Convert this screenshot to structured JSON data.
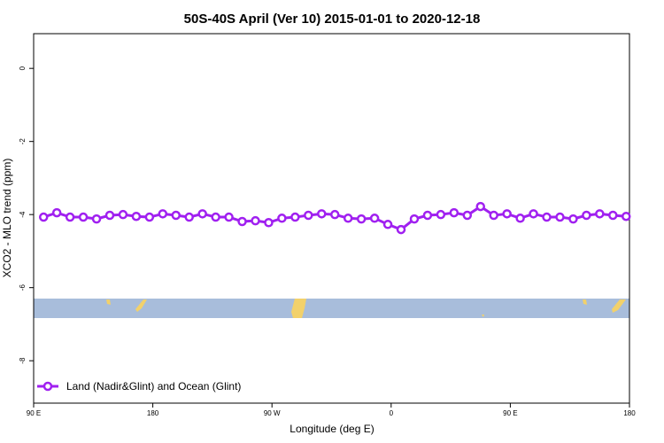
{
  "chart_data": {
    "type": "line",
    "title": "50S-40S April (Ver 10)   2015-01-01 to 2020-12-18",
    "xlabel": "Longitude (deg E)",
    "ylabel": "XCO2 - MLO trend (ppm)",
    "xlim": [
      90,
      540
    ],
    "xticks": [
      {
        "value": 90,
        "label": "90 E"
      },
      180,
      {
        "value": 270,
        "label": "90 W"
      },
      {
        "value": 360,
        "label": "0"
      },
      {
        "value": 450,
        "label": "90 E"
      },
      {
        "value": 540,
        "label": "180"
      }
    ],
    "ylim": [
      -9.16,
      0.95
    ],
    "yticks": [
      0,
      -2,
      -4,
      -6,
      -8
    ],
    "legend": "bottom-left",
    "x": [
      97.5,
      107.5,
      117.5,
      127.5,
      137.5,
      147.5,
      157.5,
      167.5,
      177.5,
      187.5,
      197.5,
      207.5,
      217.5,
      227.5,
      237.5,
      247.5,
      257.5,
      267.5,
      277.5,
      287.5,
      297.5,
      307.5,
      317.5,
      327.5,
      337.5,
      347.5,
      357.5,
      367.5,
      377.5,
      387.5,
      397.5,
      407.5,
      417.5,
      427.5,
      437.5,
      447.5,
      457.5,
      467.5,
      477.5,
      487.5,
      497.5,
      507.5,
      517.5,
      527.5,
      537.5
    ],
    "series": [
      {
        "name": "Land (Nadir&Glint) and Ocean (Glint)",
        "color": "#a020f0",
        "values": [
          -4.07,
          -3.95,
          -4.07,
          -4.07,
          -4.12,
          -4.02,
          -4.0,
          -4.05,
          -4.07,
          -3.98,
          -4.02,
          -4.07,
          -3.98,
          -4.07,
          -4.07,
          -4.19,
          -4.17,
          -4.22,
          -4.1,
          -4.07,
          -4.02,
          -3.98,
          -4.0,
          -4.1,
          -4.12,
          -4.1,
          -4.27,
          -4.41,
          -4.12,
          -4.02,
          -4.0,
          -3.95,
          -4.02,
          -3.78,
          -4.02,
          -3.98,
          -4.1,
          -3.98,
          -4.07,
          -4.07,
          -4.12,
          -4.02,
          -3.98,
          -4.02,
          -4.05
        ]
      }
    ]
  }
}
